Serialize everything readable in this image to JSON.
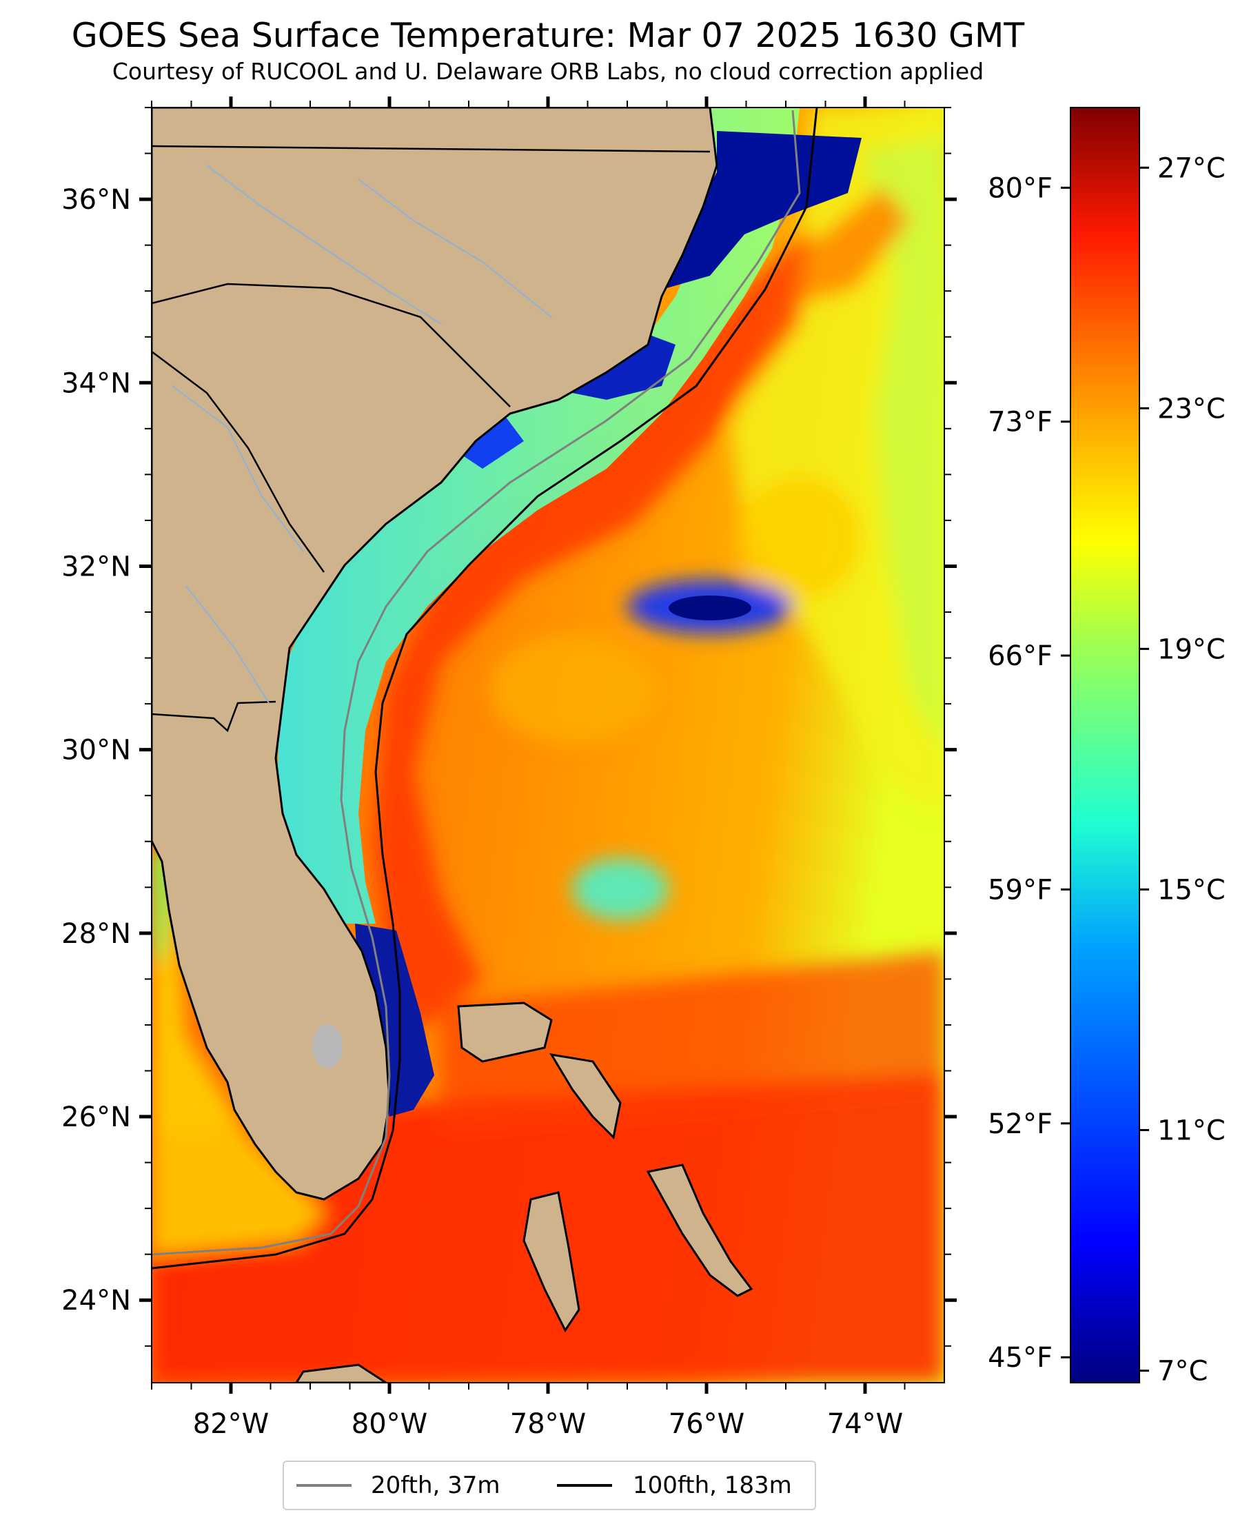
{
  "title": "GOES Sea Surface Temperature: Mar 07 2025 1630 GMT",
  "subtitle": "Courtesy of RUCOOL and U. Delaware ORB Labs, no cloud correction applied",
  "map": {
    "lon_ticks": [
      {
        "value": -82,
        "label": "82°W"
      },
      {
        "value": -80,
        "label": "80°W"
      },
      {
        "value": -78,
        "label": "78°W"
      },
      {
        "value": -76,
        "label": "76°W"
      },
      {
        "value": -74,
        "label": "74°W"
      }
    ],
    "lat_ticks": [
      {
        "value": 36,
        "label": "36°N"
      },
      {
        "value": 34,
        "label": "34°N"
      },
      {
        "value": 32,
        "label": "32°N"
      },
      {
        "value": 30,
        "label": "30°N"
      },
      {
        "value": 28,
        "label": "28°N"
      },
      {
        "value": 26,
        "label": "26°N"
      },
      {
        "value": 24,
        "label": "24°N"
      }
    ],
    "land_color": "#cfb38c",
    "coast_color": "#000000",
    "river_color": "#8fb2d9",
    "isobath_20_color": "#808080",
    "isobath_100_color": "#000000"
  },
  "colorbar": {
    "celsius": [
      {
        "value": 27,
        "label": "27°C"
      },
      {
        "value": 23,
        "label": "23°C"
      },
      {
        "value": 19,
        "label": "19°C"
      },
      {
        "value": 15,
        "label": "15°C"
      },
      {
        "value": 11,
        "label": "11°C"
      },
      {
        "value": 7,
        "label": "7°C"
      }
    ],
    "fahrenheit": [
      {
        "value": 80,
        "label": "80°F"
      },
      {
        "value": 73,
        "label": "73°F"
      },
      {
        "value": 66,
        "label": "66°F"
      },
      {
        "value": 59,
        "label": "59°F"
      },
      {
        "value": 52,
        "label": "52°F"
      },
      {
        "value": 45,
        "label": "45°F"
      }
    ],
    "colormap": "jet",
    "colors": [
      "#00007f",
      "#0000ff",
      "#007fff",
      "#00ffff",
      "#7fff7f",
      "#ffff00",
      "#ff7f00",
      "#ff0000",
      "#7f0000"
    ]
  },
  "legend": {
    "items": [
      {
        "label": "20fth, 37m",
        "color": "#808080"
      },
      {
        "label": "100fth, 183m",
        "color": "#000000"
      }
    ]
  }
}
